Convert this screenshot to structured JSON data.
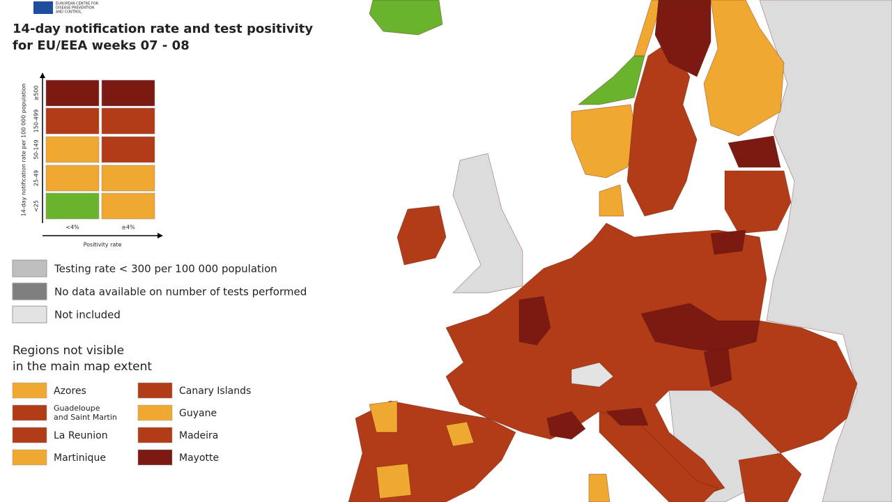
{
  "header": {
    "logo_text": [
      "EUROPEAN CENTRE FOR",
      "DISEASE PREVENTION",
      "AND CONTROL"
    ],
    "title": [
      "14-day notification rate and test positivity",
      "for EU/EEA weeks 07 - 08"
    ]
  },
  "matrix": {
    "y_label": "14-day notification rate per 100 000 population",
    "x_label": "Positivity rate",
    "columns": [
      "<4%",
      "≥4%"
    ],
    "rows": [
      {
        "label": "≥500",
        "cells": [
          "#7b1a12",
          "#7b1a12"
        ]
      },
      {
        "label": "150-499",
        "cells": [
          "#b23c17",
          "#b23c17"
        ]
      },
      {
        "label": "50-149",
        "cells": [
          "#f0a830",
          "#b23c17"
        ]
      },
      {
        "label": "25-49",
        "cells": [
          "#f0a830",
          "#f0a830"
        ]
      },
      {
        "label": "<25",
        "cells": [
          "#6ab42d",
          "#f0a830"
        ]
      }
    ]
  },
  "legend": [
    {
      "label": "Testing rate < 300 per 100 000 population",
      "color": "#bfbfbf"
    },
    {
      "label": "No data available on number of tests performed",
      "color": "#7f7f7f"
    },
    {
      "label": "Not included",
      "color": "#e3e3e3"
    }
  ],
  "regions": {
    "title": [
      "Regions not visible",
      "in the main map extent"
    ],
    "items": [
      {
        "label": "Azores",
        "color": "#f0a830"
      },
      {
        "label": "Canary Islands",
        "color": "#b23c17"
      },
      {
        "label": [
          "Guadeloupe",
          "and Saint Martin"
        ],
        "color": "#b23c17"
      },
      {
        "label": "Guyane",
        "color": "#f0a830"
      },
      {
        "label": "La Reunion",
        "color": "#b23c17"
      },
      {
        "label": "Madeira",
        "color": "#b23c17"
      },
      {
        "label": "Martinique",
        "color": "#f0a830"
      },
      {
        "label": "Mayotte",
        "color": "#7b1a12"
      }
    ]
  }
}
